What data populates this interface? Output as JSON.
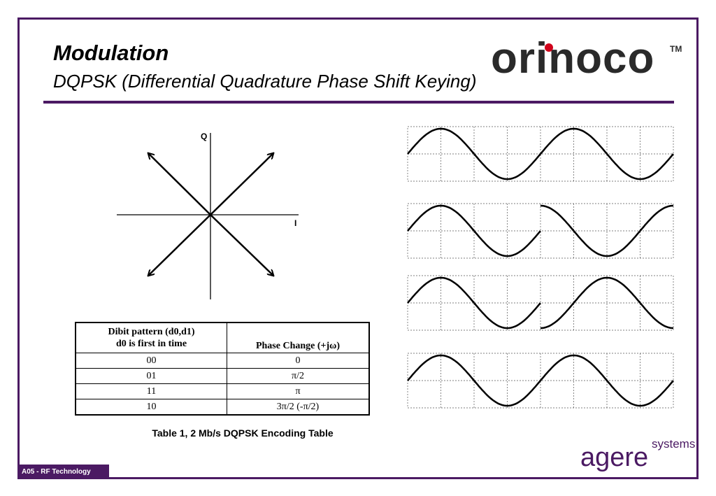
{
  "header": {
    "title": "Modulation",
    "subtitle": "DQPSK (Differential Quadrature Phase Shift Keying)"
  },
  "logo": {
    "name": "orinoco",
    "tm": "TM",
    "color": "#2a2a2a",
    "dot_color": "#d0021b"
  },
  "diagram": {
    "q_label": "Q",
    "i_label": "I"
  },
  "table": {
    "header_dibit_line1": "Dibit pattern (d0,d1)",
    "header_dibit_line2": "d0 is first in time",
    "header_phase": "Phase Change (+jω)",
    "rows": [
      {
        "dibit": "00",
        "phase": "0"
      },
      {
        "dibit": "01",
        "phase": "π/2"
      },
      {
        "dibit": "11",
        "phase": "π"
      },
      {
        "dibit": "10",
        "phase": "3π/2   (-π/2)"
      }
    ]
  },
  "caption": "Table 1, 2 Mb/s DQPSK Encoding Table",
  "footer": {
    "label": "A05 -  RF Technology"
  },
  "agere": {
    "word": "agere",
    "systems": "systems"
  },
  "colors": {
    "accent": "#4b1a63"
  },
  "waveform_phases_deg": [
    [
      0,
      180,
      0,
      180
    ],
    [
      0,
      180,
      90,
      270
    ],
    [
      0,
      180,
      270,
      90
    ],
    [
      0,
      180,
      0,
      180
    ]
  ]
}
